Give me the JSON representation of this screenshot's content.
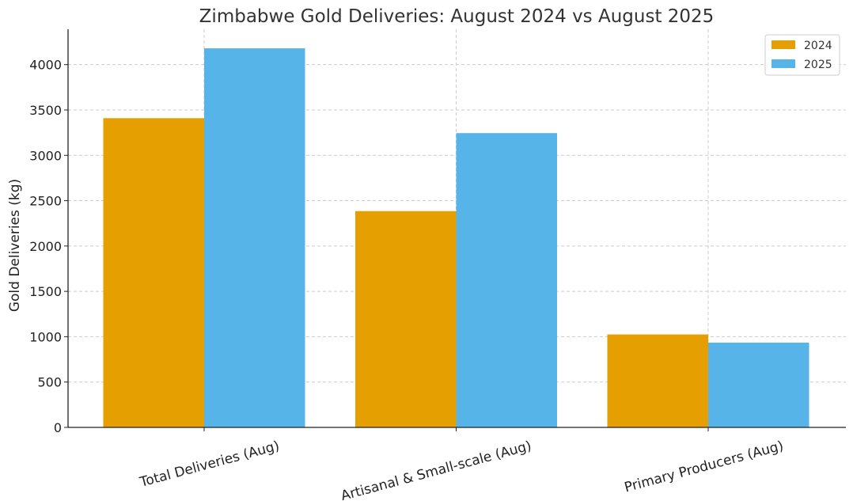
{
  "chart_data": {
    "type": "bar",
    "title": "Zimbabwe Gold Deliveries: August 2024 vs August 2025",
    "xlabel": "",
    "ylabel": "Gold Deliveries (kg)",
    "categories": [
      "Total Deliveries (Aug)",
      "Artisanal & Small-scale (Aug)",
      "Primary Producers (Aug)"
    ],
    "series": [
      {
        "name": "2024",
        "values": [
          3410,
          2385,
          1025
        ],
        "color": "#E69F00"
      },
      {
        "name": "2025",
        "values": [
          4180,
          3245,
          935
        ],
        "color": "#56B4E9"
      }
    ],
    "ylim": [
      0,
      4390
    ],
    "yticks": [
      0,
      500,
      1000,
      1500,
      2000,
      2500,
      3000,
      3500,
      4000
    ],
    "grid": true,
    "legend": "top-right"
  }
}
